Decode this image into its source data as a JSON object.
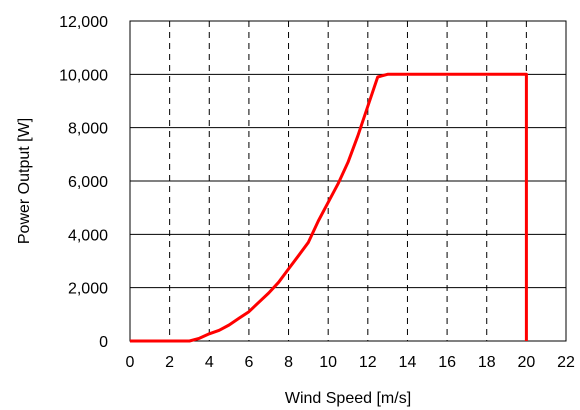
{
  "chart_data": {
    "type": "line",
    "title": "",
    "xlabel": "Wind Speed [m/s]",
    "ylabel": "Power Output [W]",
    "xlim": [
      0,
      22
    ],
    "ylim": [
      0,
      12000
    ],
    "x_ticks": [
      0,
      2,
      4,
      6,
      8,
      10,
      12,
      14,
      16,
      18,
      20,
      22
    ],
    "y_ticks": [
      0,
      2000,
      4000,
      6000,
      8000,
      10000,
      12000
    ],
    "x_tick_labels": [
      "0",
      "2",
      "4",
      "6",
      "8",
      "10",
      "12",
      "14",
      "16",
      "18",
      "20",
      "22"
    ],
    "y_tick_labels": [
      "0",
      "2,000",
      "4,000",
      "6,000",
      "8,000",
      "10,000",
      "12,000"
    ],
    "grid": {
      "vertical": "dashed",
      "horizontal": "solid"
    },
    "series": [
      {
        "color": "#ff0000",
        "x": [
          0,
          3,
          3.5,
          4,
          4.5,
          5,
          5.5,
          6,
          6.5,
          7,
          7.5,
          8,
          8.5,
          9,
          9.5,
          10,
          10.5,
          11,
          11.5,
          12,
          12.5,
          13,
          20,
          20
        ],
        "y": [
          0,
          0,
          100,
          270,
          400,
          600,
          850,
          1100,
          1450,
          1800,
          2200,
          2700,
          3200,
          3700,
          4500,
          5200,
          5900,
          6700,
          7700,
          8800,
          9900,
          10000,
          10000,
          0
        ]
      }
    ]
  }
}
